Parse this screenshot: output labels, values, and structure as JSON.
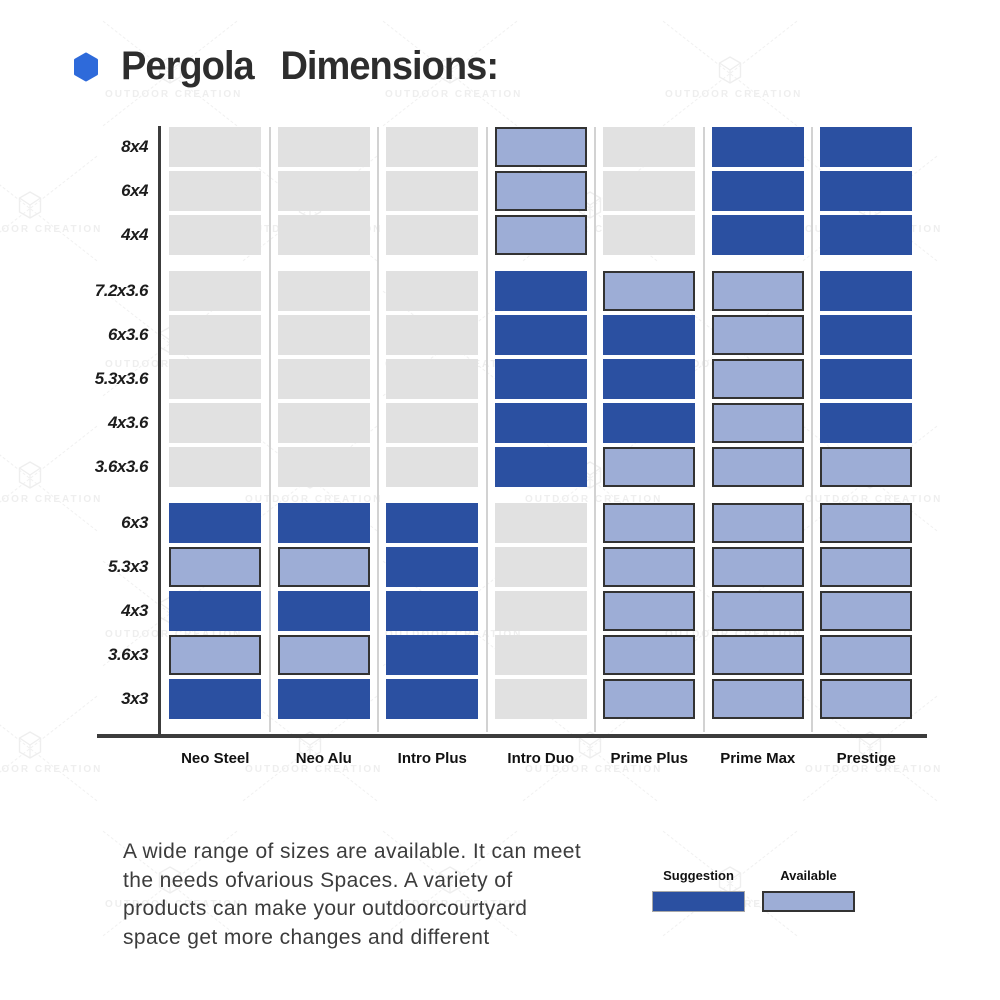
{
  "header": {
    "title": "Pergola Dimensions:",
    "bullet_color": "#2e6ada"
  },
  "watermark": {
    "text": "OUTDOOR CREATION"
  },
  "chart_data": {
    "type": "heatmap",
    "title": "Pergola Dimensions:",
    "rows": [
      "8x4",
      "6x4",
      "4x4",
      "7.2x3.6",
      "6x3.6",
      "5.3x3.6",
      "4x3.6",
      "3.6x3.6",
      "6x3",
      "5.3x3",
      "4x3",
      "3.6x3",
      "3x3"
    ],
    "group_starts": [
      3,
      8
    ],
    "columns": [
      "Neo Steel",
      "Neo Alu",
      "Intro Plus",
      "Intro Duo",
      "Prime Plus",
      "Prime Max",
      "Prestige"
    ],
    "status_colors": {
      "suggestion": "#2b50a1",
      "available": "#9dadd6",
      "none": "#e1e1e1"
    },
    "matrix": [
      [
        "none",
        "none",
        "none",
        "available",
        "none",
        "suggestion",
        "suggestion"
      ],
      [
        "none",
        "none",
        "none",
        "available",
        "none",
        "suggestion",
        "suggestion"
      ],
      [
        "none",
        "none",
        "none",
        "available",
        "none",
        "suggestion",
        "suggestion"
      ],
      [
        "none",
        "none",
        "none",
        "suggestion",
        "available",
        "available",
        "suggestion"
      ],
      [
        "none",
        "none",
        "none",
        "suggestion",
        "suggestion",
        "available",
        "suggestion"
      ],
      [
        "none",
        "none",
        "none",
        "suggestion",
        "suggestion",
        "available",
        "suggestion"
      ],
      [
        "none",
        "none",
        "none",
        "suggestion",
        "suggestion",
        "available",
        "suggestion"
      ],
      [
        "none",
        "none",
        "none",
        "suggestion",
        "available",
        "available",
        "available"
      ],
      [
        "suggestion",
        "suggestion",
        "suggestion",
        "none",
        "available",
        "available",
        "available"
      ],
      [
        "available",
        "available",
        "suggestion",
        "none",
        "available",
        "available",
        "available"
      ],
      [
        "suggestion",
        "suggestion",
        "suggestion",
        "none",
        "available",
        "available",
        "available"
      ],
      [
        "available",
        "available",
        "suggestion",
        "none",
        "available",
        "available",
        "available"
      ],
      [
        "suggestion",
        "suggestion",
        "suggestion",
        "none",
        "available",
        "available",
        "available"
      ]
    ],
    "legend": [
      {
        "label": "Suggestion",
        "status": "suggestion"
      },
      {
        "label": "Available",
        "status": "available"
      }
    ],
    "legend_position": "bottom-right",
    "grid": false
  },
  "caption": {
    "text": "A wide range of sizes are available. It can meet\nthe needs ofvarious Spaces. A variety of\nproducts can make your outdoorcourtyard\nspace get more changes and different"
  }
}
